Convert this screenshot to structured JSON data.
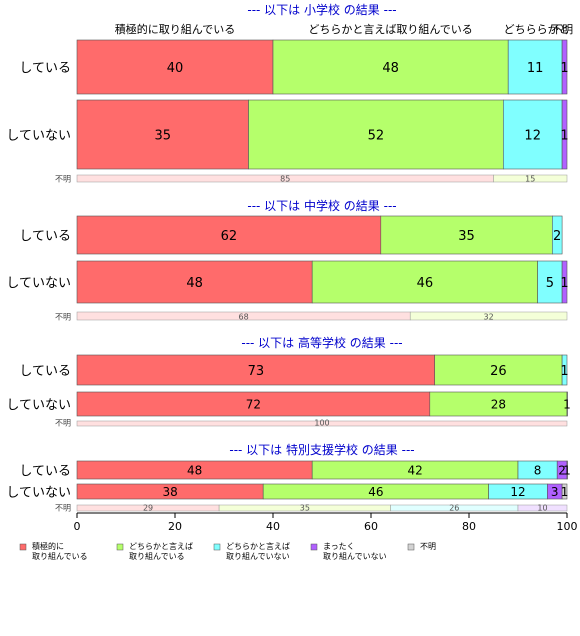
{
  "chart_data": {
    "type": "bar",
    "orientation": "horizontal",
    "stacked": true,
    "xlim": [
      0,
      100
    ],
    "x_ticks": [
      0,
      20,
      40,
      60,
      80,
      100
    ],
    "legend_position": "bottom",
    "categories": [
      "積極的に取り組んでいる",
      "どちらかと言えば取り組んでいる",
      "どちらかと言えば取り組んでいない",
      "まったく取り組んでいない",
      "不明"
    ],
    "legend": [
      {
        "line1": "積極的に",
        "line2": "取り組んでいる",
        "color": "#ff6b6b"
      },
      {
        "line1": "どちらかと言えば",
        "line2": "取り組んでいる",
        "color": "#b5ff6b"
      },
      {
        "line1": "どちらかと言えば",
        "line2": "取り組んでいない",
        "color": "#80ffff"
      },
      {
        "line1": "まったく",
        "line2": "取り組んでいない",
        "color": "#b060ff"
      },
      {
        "line1": "不明",
        "line2": "",
        "color": "#d3d3d3"
      }
    ],
    "top_labels": [
      "積極的に取り組んでいる",
      "どちらかと言えば取り組んでいる",
      "どちららかと",
      "不明"
    ],
    "panels": [
      {
        "title": "--- 以下は 小学校 の結果 ---",
        "rows": [
          {
            "label": "している",
            "values": [
              40,
              48,
              11,
              1,
              0
            ]
          },
          {
            "label": "していない",
            "values": [
              35,
              52,
              12,
              1,
              0
            ]
          }
        ],
        "unknown": {
          "label": "不明",
          "values": [
            85,
            15
          ]
        }
      },
      {
        "title": "--- 以下は 中学校 の結果 ---",
        "rows": [
          {
            "label": "している",
            "values": [
              62,
              35,
              2,
              0,
              0
            ]
          },
          {
            "label": "していない",
            "values": [
              48,
              46,
              5,
              1,
              0
            ]
          }
        ],
        "unknown": {
          "label": "不明",
          "values": [
            68,
            32
          ]
        }
      },
      {
        "title": "--- 以下は 高等学校 の結果 ---",
        "rows": [
          {
            "label": "している",
            "values": [
              73,
              26,
              1,
              0,
              0
            ]
          },
          {
            "label": "していない",
            "values": [
              72,
              28,
              1,
              0,
              0
            ]
          }
        ],
        "unknown": {
          "label": "不明",
          "values": [
            100
          ]
        }
      },
      {
        "title": "--- 以下は 特別支援学校 の結果 ---",
        "rows": [
          {
            "label": "している",
            "values": [
              48,
              42,
              8,
              2,
              1
            ]
          },
          {
            "label": "していない",
            "values": [
              38,
              46,
              12,
              3,
              1
            ]
          }
        ],
        "unknown": {
          "label": "不明",
          "values": [
            29,
            35,
            26,
            10
          ]
        }
      }
    ]
  }
}
